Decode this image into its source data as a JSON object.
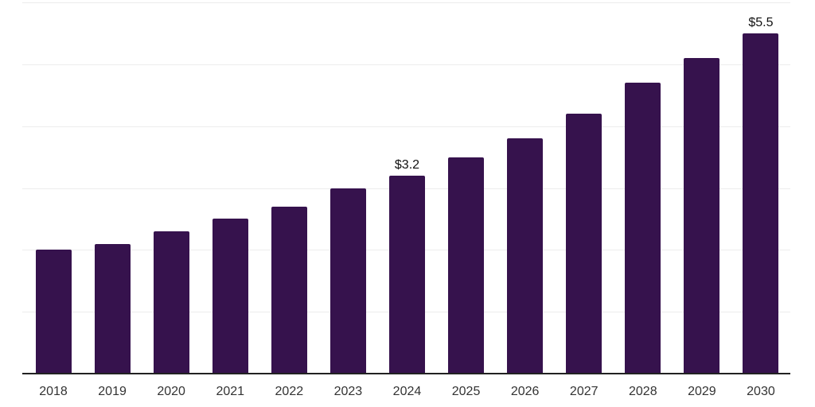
{
  "chart_data": {
    "type": "bar",
    "title": "",
    "xlabel": "",
    "ylabel": "",
    "categories": [
      "2018",
      "2019",
      "2020",
      "2021",
      "2022",
      "2023",
      "2024",
      "2025",
      "2026",
      "2027",
      "2028",
      "2029",
      "2030"
    ],
    "values": [
      2.0,
      2.1,
      2.3,
      2.5,
      2.7,
      3.0,
      3.2,
      3.5,
      3.8,
      4.2,
      4.7,
      5.1,
      5.5
    ],
    "data_labels": [
      "",
      "",
      "",
      "",
      "",
      "",
      "$3.2",
      "",
      "",
      "",
      "",
      "",
      "$5.5"
    ],
    "ylim": [
      0,
      6
    ],
    "gridline_values": [
      1,
      2,
      3,
      4,
      5,
      6
    ],
    "grid": true,
    "y_tick_labels_visible": false,
    "legend_position": "none",
    "colors": {
      "bar": "#36124D",
      "gridline": "#ECECEC",
      "axis_line": "#222222",
      "tick_label": "#333333",
      "data_label": "#111111",
      "background": "#FFFFFF"
    }
  }
}
